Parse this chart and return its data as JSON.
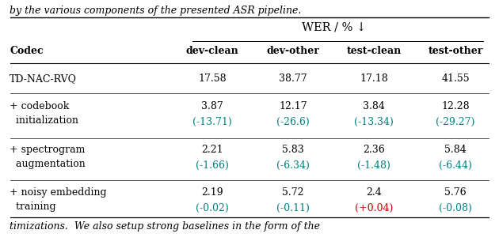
{
  "title": "WER / % ↓",
  "col_header": [
    "Codec",
    "dev-clean",
    "dev-other",
    "test-clean",
    "test-other"
  ],
  "rows": [
    {
      "label": [
        "TD-NAC-RVQ"
      ],
      "values": [
        "17.58",
        "38.77",
        "17.18",
        "41.55"
      ],
      "deltas": [
        null,
        null,
        null,
        null
      ],
      "delta_colors": [
        null,
        null,
        null,
        null
      ]
    },
    {
      "label": [
        "+ codebook",
        "  initialization"
      ],
      "values": [
        "3.87",
        "12.17",
        "3.84",
        "12.28"
      ],
      "deltas": [
        "(-13.71)",
        "(-26.6)",
        "(-13.34)",
        "(-29.27)"
      ],
      "delta_colors": [
        "#008080",
        "#008080",
        "#008080",
        "#008080"
      ]
    },
    {
      "label": [
        "+ spectrogram",
        "  augmentation"
      ],
      "values": [
        "2.21",
        "5.83",
        "2.36",
        "5.84"
      ],
      "deltas": [
        "(-1.66)",
        "(-6.34)",
        "(-1.48)",
        "(-6.44)"
      ],
      "delta_colors": [
        "#008080",
        "#008080",
        "#008080",
        "#008080"
      ]
    },
    {
      "label": [
        "+ noisy embedding",
        "  training"
      ],
      "values": [
        "2.19",
        "5.72",
        "2.4",
        "5.76"
      ],
      "deltas": [
        "(-0.02)",
        "(-0.11)",
        "(+0.04)",
        "(-0.08)"
      ],
      "delta_colors": [
        "#008080",
        "#008080",
        "#CC0000",
        "#008080"
      ]
    }
  ],
  "top_text": "by the various components of the presented ASR pipeline.",
  "bottom_text": "timizations.  We also setup strong baselines in the form of the",
  "bg_color": "#ffffff",
  "fs_body": 9.0,
  "fs_bold": 9.0,
  "fs_italic": 9.0
}
